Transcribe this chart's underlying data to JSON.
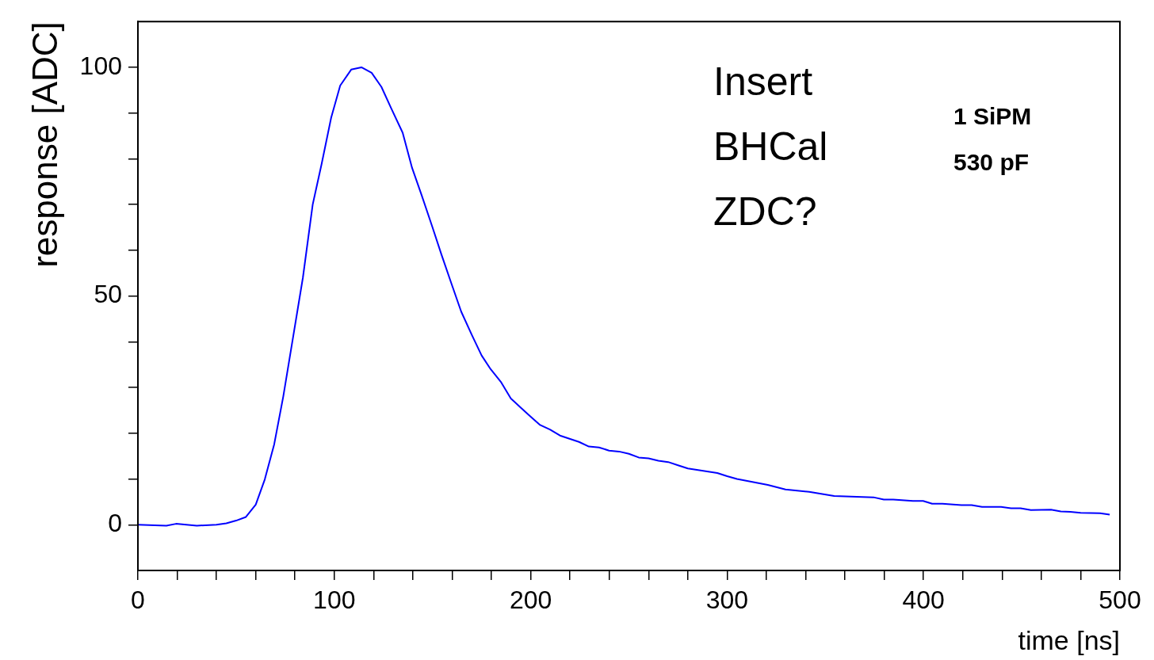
{
  "chart_data": {
    "type": "line",
    "xlabel": "time [ns]",
    "ylabel": "response [ADC]",
    "annotations": [
      "Insert\nBHCal\nZDC?",
      "1 SiPM",
      "530 pF"
    ],
    "xlim": [
      0,
      500
    ],
    "ylim": [
      -10,
      110
    ],
    "xticks": [
      0,
      {
        "value": 20,
        "label": null
      },
      {
        "value": 40,
        "label": null
      },
      {
        "value": 60,
        "label": null
      },
      {
        "value": 80,
        "label": null
      },
      100,
      {
        "value": 120,
        "label": null
      },
      {
        "value": 140,
        "label": null
      },
      {
        "value": 160,
        "label": null
      },
      {
        "value": 180,
        "label": null
      },
      200,
      {
        "value": 220,
        "label": null
      },
      {
        "value": 240,
        "label": null
      },
      {
        "value": 260,
        "label": null
      },
      {
        "value": 280,
        "label": null
      },
      300,
      {
        "value": 320,
        "label": null
      },
      {
        "value": 340,
        "label": null
      },
      {
        "value": 360,
        "label": null
      },
      {
        "value": 380,
        "label": null
      },
      400,
      {
        "value": 420,
        "label": null
      },
      {
        "value": 440,
        "label": null
      },
      {
        "value": 460,
        "label": null
      },
      {
        "value": 480,
        "label": null
      },
      500
    ],
    "yticks": [
      0,
      {
        "value": 10,
        "label": null
      },
      {
        "value": 20,
        "label": null
      },
      {
        "value": 30,
        "label": null
      },
      {
        "value": 40,
        "label": null
      },
      50,
      {
        "value": 60,
        "label": null
      },
      {
        "value": 70,
        "label": null
      },
      {
        "value": 80,
        "label": null
      },
      {
        "value": 90,
        "label": null
      },
      100
    ],
    "grid": false,
    "legend": false,
    "marker": "none",
    "line_style": "solid",
    "series": [
      {
        "color": "#0000ff",
        "x": [
          0,
          14.5,
          19.4,
          30,
          40,
          45,
          50,
          55,
          60,
          64.6,
          69.4,
          74,
          79,
          84,
          89,
          93.6,
          98.4,
          103,
          108.6,
          113.8,
          119,
          124,
          129,
          134.8,
          139.6,
          144.5,
          150,
          154.6,
          159.4,
          164.6,
          170,
          175,
          179.6,
          185,
          189.9,
          194.7,
          199.8,
          204.8,
          209.8,
          214.9,
          224.6,
          229.6,
          234.8,
          239.9,
          245,
          250,
          255,
          260,
          265,
          270,
          275,
          280,
          295,
          300,
          305,
          320.7,
          329.7,
          341.8,
          354.5,
          374.5,
          379.8,
          384.6,
          394.6,
          399.8,
          404.4,
          409.6,
          419.3,
          424.5,
          429.8,
          439.5,
          444.6,
          449.4,
          454.7,
          464.9,
          469.9,
          474.8,
          480,
          489.9,
          494.8
        ],
        "values": [
          0,
          -0.2,
          0.2,
          -0.2,
          0,
          0.3,
          0.9,
          1.7,
          4.4,
          9.9,
          17.6,
          28,
          41,
          54,
          70,
          79,
          89,
          96,
          99.5,
          100,
          98.8,
          95.7,
          91,
          85.7,
          78,
          72,
          65,
          59,
          53,
          46.6,
          41.5,
          37,
          34,
          31.1,
          27.6,
          25.7,
          23.7,
          21.8,
          20.8,
          19.5,
          18.1,
          17.1,
          16.9,
          16.2,
          16,
          15.5,
          14.7,
          14.5,
          14,
          13.7,
          13,
          12.3,
          11.3,
          10.6,
          10,
          8.7,
          7.7,
          7.2,
          6.3,
          6,
          5.5,
          5.5,
          5.2,
          5.2,
          4.6,
          4.6,
          4.3,
          4.3,
          3.9,
          3.9,
          3.6,
          3.6,
          3.2,
          3.3,
          2.9,
          2.8,
          2.6,
          2.5,
          2.2
        ]
      }
    ]
  }
}
